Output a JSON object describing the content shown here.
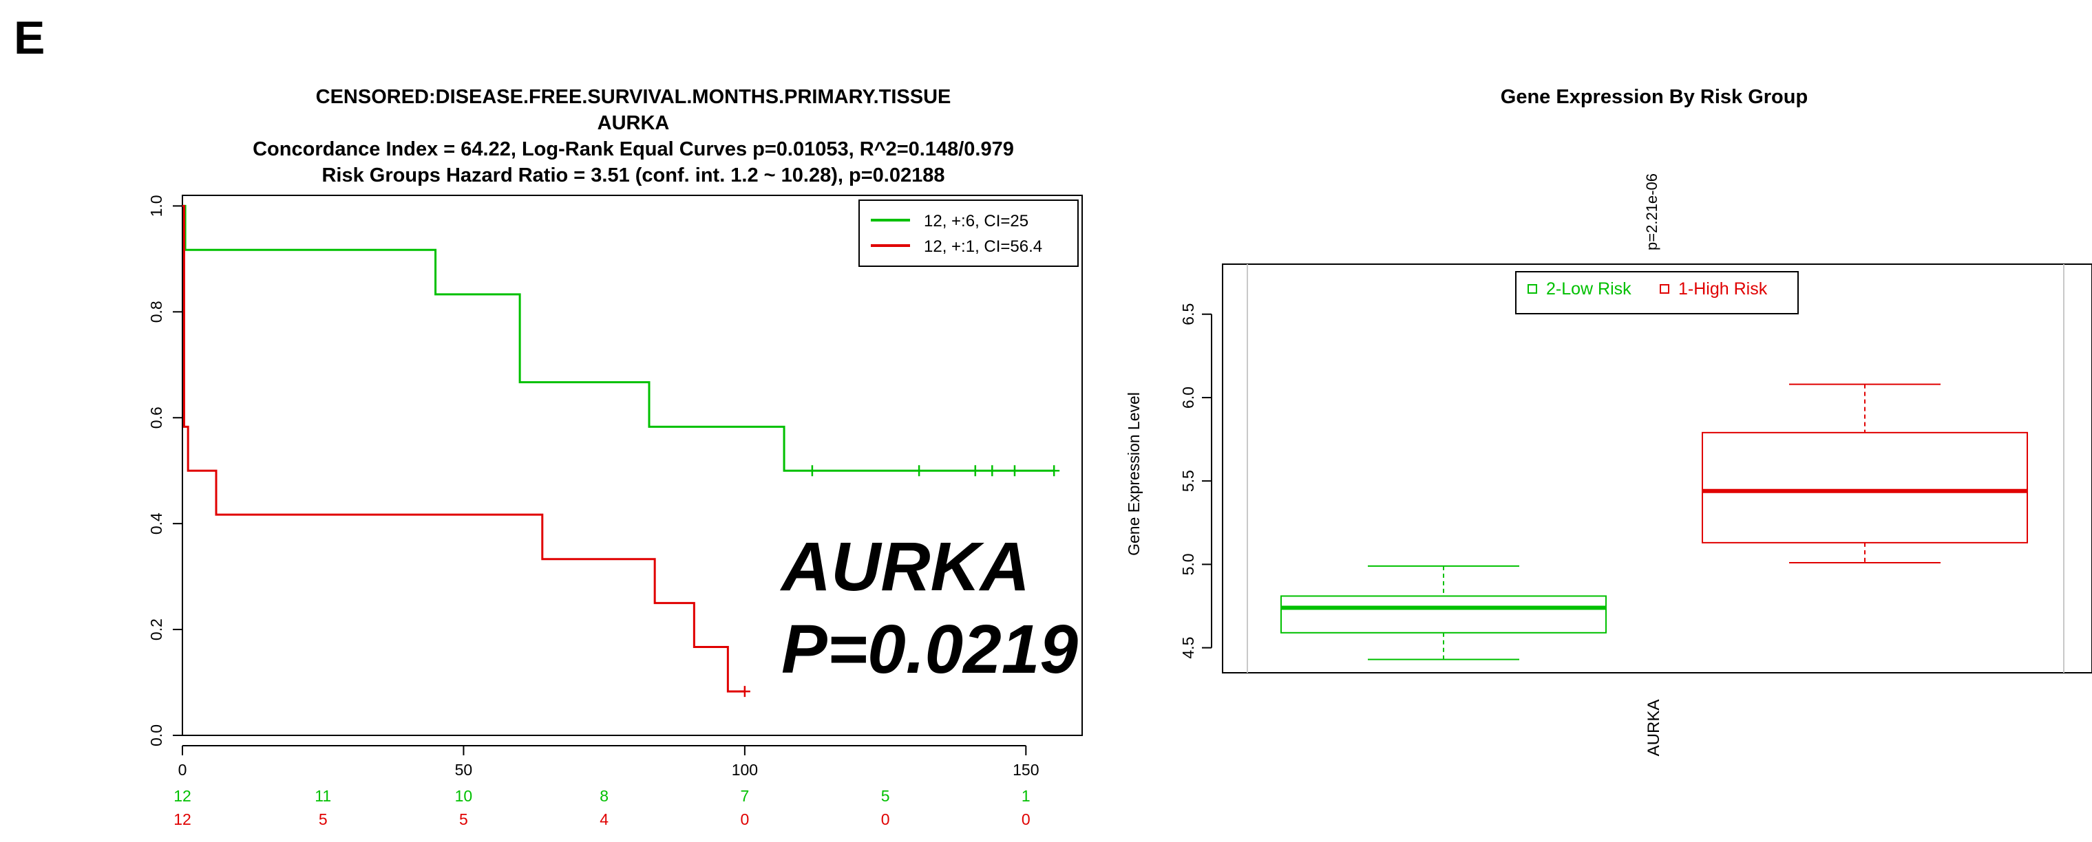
{
  "panel_letter": "E",
  "chart_data": [
    {
      "type": "line",
      "subtype": "kaplan-meier",
      "title_lines": [
        "CENSORED:DISEASE.FREE.SURVIVAL.MONTHS.PRIMARY.TISSUE",
        "AURKA",
        "Concordance Index = 64.22, Log-Rank Equal Curves p=0.01053, R^2=0.148/0.979",
        "Risk Groups Hazard Ratio = 3.51 (conf. int. 1.2 ~ 10.28), p=0.02188"
      ],
      "xlim": [
        0,
        160
      ],
      "ylim": [
        0,
        1.02
      ],
      "x_ticks": [
        "0",
        "50",
        "100",
        "150"
      ],
      "y_ticks": [
        "0.0",
        "0.2",
        "0.4",
        "0.6",
        "0.8",
        "1.0"
      ],
      "legend_position": "top-right",
      "series": [
        {
          "name": "12, +:6, CI=25",
          "color": "#00c000",
          "steps": [
            [
              0,
              1.0
            ],
            [
              0.5,
              0.917
            ],
            [
              45,
              0.833
            ],
            [
              60,
              0.667
            ],
            [
              83,
              0.583
            ],
            [
              107,
              0.5
            ],
            [
              155,
              0.5
            ]
          ],
          "censor_x": [
            112,
            131,
            141,
            144,
            148,
            155
          ]
        },
        {
          "name": "12, +:1, CI=56.4",
          "color": "#e00000",
          "steps": [
            [
              0,
              1.0
            ],
            [
              0.3,
              0.583
            ],
            [
              1,
              0.5
            ],
            [
              6,
              0.417
            ],
            [
              64,
              0.333
            ],
            [
              84,
              0.25
            ],
            [
              91,
              0.167
            ],
            [
              97,
              0.083
            ],
            [
              100,
              0.083
            ]
          ],
          "censor_x": [
            100
          ]
        }
      ],
      "risk_table": {
        "x": [
          0,
          25,
          50,
          75,
          100,
          125,
          150
        ],
        "rows": [
          {
            "color": "#00c000",
            "values": [
              "12",
              "11",
              "10",
              "8",
              "7",
              "5",
              "1"
            ]
          },
          {
            "color": "#e00000",
            "values": [
              "12",
              "5",
              "5",
              "4",
              "0",
              "0",
              "0"
            ]
          }
        ]
      },
      "annotation_lines": [
        "AURKA",
        "P=0.0219"
      ]
    },
    {
      "type": "boxplot",
      "title": "Gene Expression By Risk Group",
      "p_label": "p=2.21e-06",
      "ylabel": "Gene Expression Level",
      "xlabel": "AURKA",
      "ylim": [
        4.35,
        6.8
      ],
      "y_ticks": [
        "4.5",
        "5.0",
        "5.5",
        "6.0",
        "6.5"
      ],
      "legend_position": "top-center",
      "groups": [
        {
          "name": "2-Low Risk",
          "color": "#00c000",
          "min": 4.43,
          "q1": 4.59,
          "median": 4.74,
          "q3": 4.81,
          "max": 4.99
        },
        {
          "name": "1-High Risk",
          "color": "#e00000",
          "min": 5.01,
          "q1": 5.13,
          "median": 5.44,
          "q3": 5.79,
          "max": 6.08
        }
      ]
    }
  ]
}
